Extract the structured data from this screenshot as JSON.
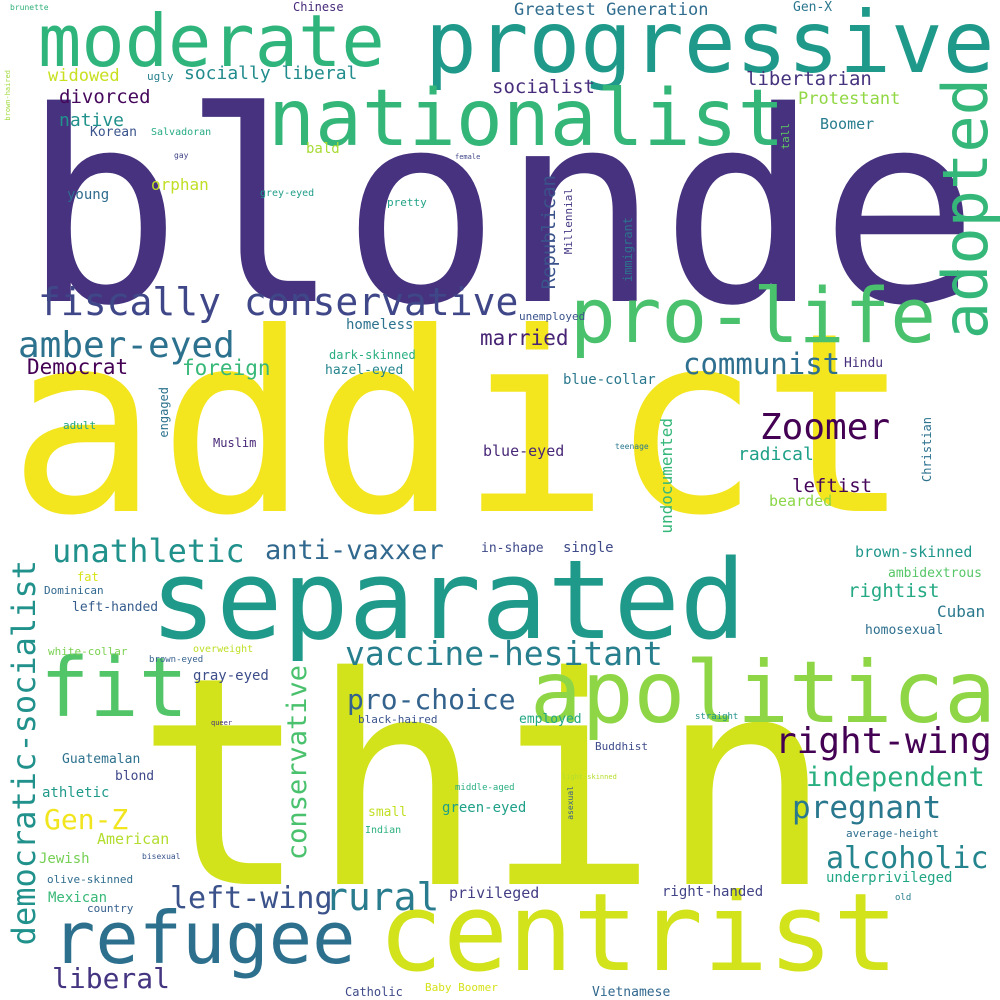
{
  "words": [
    {
      "text": "blonde",
      "color": "#46327e"
    },
    {
      "text": "addict",
      "color": "#f3e51e"
    },
    {
      "text": "thin",
      "color": "#d2e21b"
    },
    {
      "text": "separated",
      "color": "#1f9a8a"
    },
    {
      "text": "progressive",
      "color": "#1f9a8a"
    },
    {
      "text": "moderate",
      "color": "#2fb47c"
    },
    {
      "text": "nationalist",
      "color": "#34b679"
    },
    {
      "text": "centrist",
      "color": "#d2e21b"
    },
    {
      "text": "apolitical",
      "color": "#8ed645"
    },
    {
      "text": "pro-life",
      "color": "#4ac16d"
    },
    {
      "text": "adopted",
      "color": "#35b779"
    },
    {
      "text": "fit",
      "color": "#52c569"
    },
    {
      "text": "refugee",
      "color": "#2d708e"
    },
    {
      "text": "fiscally conservative",
      "color": "#3f4788"
    },
    {
      "text": "amber-eyed",
      "color": "#2c728e"
    },
    {
      "text": "Zoomer",
      "color": "#440154"
    },
    {
      "text": "right-wing",
      "color": "#440154"
    },
    {
      "text": "vaccine-hesitant",
      "color": "#277f8e"
    },
    {
      "text": "anti-vaxxer",
      "color": "#31688e"
    },
    {
      "text": "unathletic",
      "color": "#21918c"
    },
    {
      "text": "democratic-socialist",
      "color": "#21918c"
    },
    {
      "text": "conservative",
      "color": "#4ac16d"
    },
    {
      "text": "rural",
      "color": "#287c8e"
    },
    {
      "text": "left-wing",
      "color": "#3b528b"
    },
    {
      "text": "alcoholic",
      "color": "#25858e"
    },
    {
      "text": "pregnant",
      "color": "#2a788e"
    },
    {
      "text": "independent",
      "color": "#29af7f"
    },
    {
      "text": "communist",
      "color": "#2e6e8e"
    },
    {
      "text": "pro-choice",
      "color": "#33638d"
    },
    {
      "text": "Gen-Z",
      "color": "#f1e51d"
    },
    {
      "text": "liberal",
      "color": "#453581"
    },
    {
      "text": "married",
      "color": "#482475"
    },
    {
      "text": "Democrat",
      "color": "#440154"
    },
    {
      "text": "foreign",
      "color": "#37b878"
    },
    {
      "text": "Republican",
      "color": "#3b528b"
    },
    {
      "text": "socialist",
      "color": "#472d7b"
    },
    {
      "text": "libertarian",
      "color": "#46337e"
    },
    {
      "text": "divorced",
      "color": "#46085c"
    },
    {
      "text": "native",
      "color": "#21918c"
    },
    {
      "text": "widowed",
      "color": "#c8e020"
    },
    {
      "text": "socially liberal",
      "color": "#228c8d"
    },
    {
      "text": "Greatest Generation",
      "color": "#2f6c8e"
    },
    {
      "text": "Protestant",
      "color": "#90d743"
    },
    {
      "text": "Boomer",
      "color": "#287d8e"
    },
    {
      "text": "orphan",
      "color": "#c0df25"
    },
    {
      "text": "radical",
      "color": "#1fa088"
    },
    {
      "text": "leftist",
      "color": "#46075a"
    },
    {
      "text": "bearded",
      "color": "#8bd646"
    },
    {
      "text": "undocumented",
      "color": "#35b779"
    },
    {
      "text": "brown-skinned",
      "color": "#1f978b"
    },
    {
      "text": "rightist",
      "color": "#23a983"
    },
    {
      "text": "ambidextrous",
      "color": "#56c667"
    },
    {
      "text": "Cuban",
      "color": "#2a788e"
    },
    {
      "text": "homosexual",
      "color": "#2e6f8e"
    },
    {
      "text": "single",
      "color": "#3e4a89"
    },
    {
      "text": "in-shape",
      "color": "#3e4989"
    },
    {
      "text": "blue-eyed",
      "color": "#482878"
    },
    {
      "text": "blue-collar",
      "color": "#2a788e"
    },
    {
      "text": "Hindu",
      "color": "#472f7d"
    },
    {
      "text": "Christian",
      "color": "#2c728e"
    },
    {
      "text": "teenage",
      "color": "#2a788e"
    },
    {
      "text": "immigrant",
      "color": "#2c738e"
    },
    {
      "text": "Millennial",
      "color": "#443983"
    },
    {
      "text": "tall",
      "color": "#5ec962"
    },
    {
      "text": "Gen-X",
      "color": "#2a768e"
    },
    {
      "text": "Chinese",
      "color": "#472a7a"
    },
    {
      "text": "brunette",
      "color": "#30b07a"
    },
    {
      "text": "brown-haired",
      "color": "#9fda3a"
    },
    {
      "text": "ugly",
      "color": "#26818e"
    },
    {
      "text": "Korean",
      "color": "#3a548c"
    },
    {
      "text": "Salvadoran",
      "color": "#25ab82"
    },
    {
      "text": "gay",
      "color": "#414487"
    },
    {
      "text": "female",
      "color": "#404688"
    },
    {
      "text": "bald",
      "color": "#a8db34"
    },
    {
      "text": "young",
      "color": "#2f6b8e"
    },
    {
      "text": "grey-eyed",
      "color": "#1f9e89"
    },
    {
      "text": "pretty",
      "color": "#20a386"
    },
    {
      "text": "unemployed",
      "color": "#3a538b"
    },
    {
      "text": "homeless",
      "color": "#2c738e"
    },
    {
      "text": "dark-skinned",
      "color": "#29af7f"
    },
    {
      "text": "hazel-eyed",
      "color": "#25858e"
    },
    {
      "text": "engaged",
      "color": "#2c728e"
    },
    {
      "text": "adult",
      "color": "#20a386"
    },
    {
      "text": "Muslim",
      "color": "#482878"
    },
    {
      "text": "fat",
      "color": "#d8e219"
    },
    {
      "text": "Dominican",
      "color": "#31688e"
    },
    {
      "text": "left-handed",
      "color": "#365c8d"
    },
    {
      "text": "white-collar",
      "color": "#7ad151"
    },
    {
      "text": "brown-eyed",
      "color": "#35608d"
    },
    {
      "text": "overweight",
      "color": "#bddf26"
    },
    {
      "text": "gray-eyed",
      "color": "#3d4e8a"
    },
    {
      "text": "queer",
      "color": "#46327e"
    },
    {
      "text": "black-haired",
      "color": "#3a548c"
    },
    {
      "text": "employed",
      "color": "#22a785"
    },
    {
      "text": "straight",
      "color": "#20938c"
    },
    {
      "text": "Guatemalan",
      "color": "#2d718e"
    },
    {
      "text": "athletic",
      "color": "#1f9a8a"
    },
    {
      "text": "blond",
      "color": "#3f4889"
    },
    {
      "text": "Buddhist",
      "color": "#3e4c8a"
    },
    {
      "text": "light-skinned",
      "color": "#b5de2b"
    },
    {
      "text": "middle-aged",
      "color": "#29af7f"
    },
    {
      "text": "asexual",
      "color": "#365c8d"
    },
    {
      "text": "small",
      "color": "#c2df23"
    },
    {
      "text": "green-eyed",
      "color": "#1fa088"
    },
    {
      "text": "Indian",
      "color": "#2ab07f"
    },
    {
      "text": "American",
      "color": "#b2dd2d"
    },
    {
      "text": "Jewish",
      "color": "#75d054"
    },
    {
      "text": "bisexual",
      "color": "#39568c"
    },
    {
      "text": "olive-skinned",
      "color": "#2f6c8e"
    },
    {
      "text": "Mexican",
      "color": "#38b977"
    },
    {
      "text": "country",
      "color": "#355f8d"
    },
    {
      "text": "privileged",
      "color": "#433e85"
    },
    {
      "text": "right-handed",
      "color": "#414487"
    },
    {
      "text": "underprivileged",
      "color": "#21a685"
    },
    {
      "text": "average-height",
      "color": "#2e6e8e"
    },
    {
      "text": "old",
      "color": "#287d8e"
    },
    {
      "text": "Catholic",
      "color": "#3e4a89"
    },
    {
      "text": "Baby Boomer",
      "color": "#d5e21a"
    },
    {
      "text": "Vietnamese",
      "color": "#31688e"
    }
  ]
}
